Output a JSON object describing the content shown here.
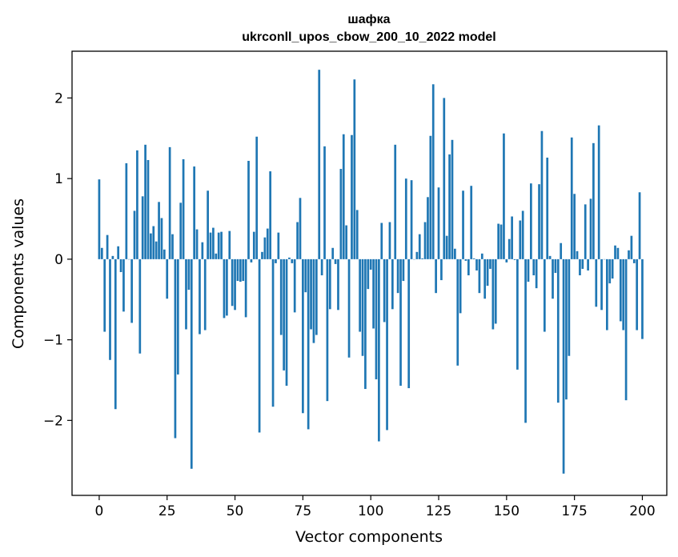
{
  "chart_data": {
    "type": "bar",
    "title": "шафка",
    "subtitle": "ukrconll_upos_cbow_200_10_2022 model",
    "xlabel": "Vector components",
    "ylabel": "Components values",
    "xlim": [
      -10,
      209
    ],
    "ylim": [
      -2.93,
      2.58
    ],
    "xticks": [
      0,
      25,
      50,
      75,
      100,
      125,
      150,
      175,
      200
    ],
    "yticks": [
      -2,
      -1,
      0,
      1,
      2
    ],
    "xtick_labels": [
      "0",
      "25",
      "50",
      "75",
      "100",
      "125",
      "150",
      "175",
      "200"
    ],
    "ytick_labels": [
      "−2",
      "−1",
      "0",
      "1",
      "2"
    ],
    "grid": false,
    "bar_color": "#1f77b4",
    "values": [
      0.99,
      0.14,
      -0.9,
      0.3,
      -1.25,
      0.04,
      -1.86,
      0.16,
      -0.16,
      -0.65,
      1.19,
      0.0,
      -0.79,
      0.6,
      1.35,
      -1.17,
      0.78,
      1.42,
      1.23,
      0.32,
      0.41,
      0.22,
      0.71,
      0.51,
      0.12,
      -0.49,
      1.39,
      0.31,
      -2.22,
      -1.43,
      0.7,
      1.24,
      -0.87,
      -0.38,
      -2.6,
      1.15,
      0.37,
      -0.93,
      0.21,
      -0.88,
      0.85,
      0.33,
      0.39,
      0.07,
      0.33,
      0.34,
      -0.73,
      -0.7,
      0.35,
      -0.58,
      -0.63,
      -0.27,
      -0.28,
      -0.27,
      -0.72,
      1.22,
      -0.04,
      0.34,
      1.52,
      -2.15,
      0.09,
      0.27,
      0.38,
      1.09,
      -1.83,
      -0.05,
      0.33,
      -0.94,
      -1.38,
      -1.57,
      0.02,
      -0.05,
      -0.66,
      0.46,
      0.76,
      -1.91,
      -0.41,
      -2.11,
      -0.87,
      -1.04,
      -0.94,
      2.35,
      -0.2,
      1.4,
      -1.76,
      -0.62,
      0.14,
      -0.06,
      -0.63,
      1.12,
      1.55,
      0.42,
      -1.22,
      1.54,
      2.23,
      0.61,
      -0.9,
      -1.2,
      -1.61,
      -0.37,
      -0.13,
      -0.86,
      -1.49,
      -2.26,
      0.45,
      -0.78,
      -2.12,
      0.46,
      -0.62,
      1.42,
      -0.42,
      -1.57,
      -0.27,
      1.0,
      -1.6,
      0.98,
      0.0,
      0.09,
      0.31,
      0.01,
      0.46,
      0.77,
      1.53,
      2.17,
      -0.42,
      0.89,
      -0.26,
      2.0,
      0.29,
      1.3,
      1.48,
      0.13,
      -1.32,
      -0.67,
      0.85,
      -0.02,
      -0.2,
      0.91,
      0.01,
      -0.14,
      -0.42,
      0.07,
      -0.49,
      -0.33,
      -0.12,
      -0.87,
      -0.8,
      0.44,
      0.43,
      1.56,
      -0.04,
      0.25,
      0.53,
      -0.01,
      -1.37,
      0.48,
      0.6,
      -2.03,
      -0.28,
      0.94,
      -0.2,
      -0.36,
      0.93,
      1.59,
      -0.9,
      1.26,
      0.04,
      -0.49,
      -0.17,
      -1.78,
      0.2,
      -2.66,
      -1.74,
      -1.2,
      1.51,
      0.81,
      0.1,
      -0.2,
      -0.12,
      0.68,
      -0.14,
      0.75,
      1.44,
      -0.59,
      1.66,
      -0.63,
      0.0,
      -0.88,
      -0.3,
      -0.24,
      0.17,
      0.14,
      -0.77,
      -0.88,
      -1.75,
      0.11,
      0.29,
      -0.05,
      -0.88,
      0.83,
      -0.99
    ]
  }
}
